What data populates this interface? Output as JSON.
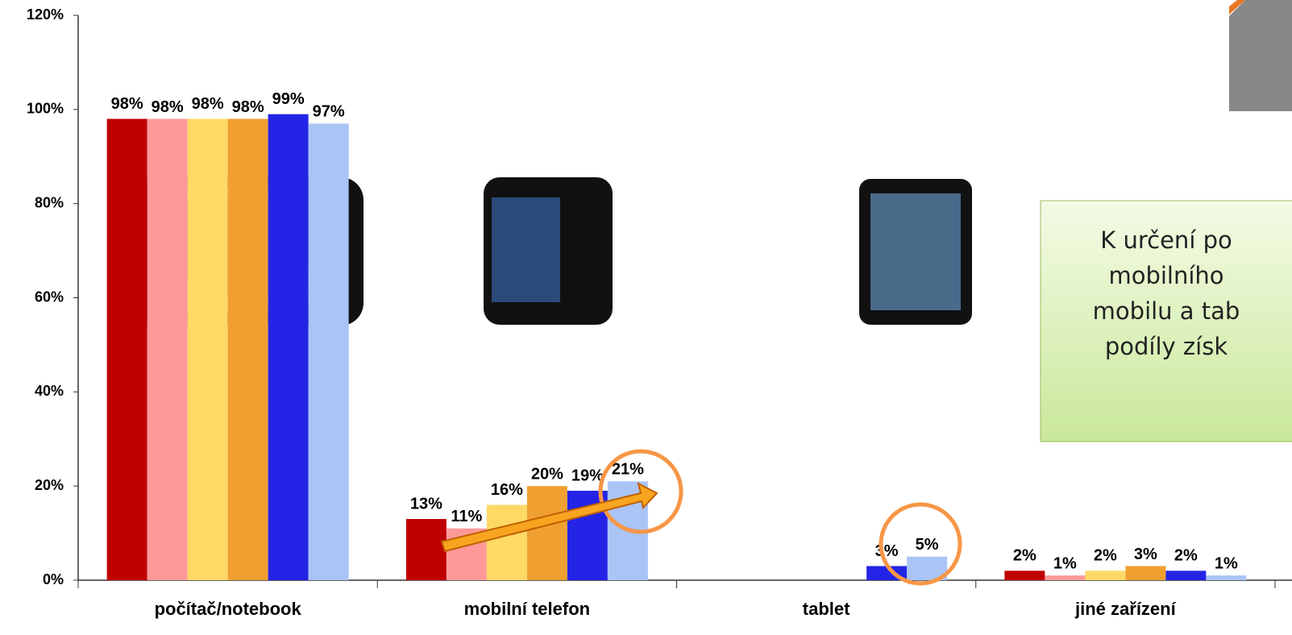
{
  "chart_data": {
    "type": "bar",
    "categories": [
      "počítač/notebook",
      "mobilní telefon",
      "tablet",
      "jiné zařízení"
    ],
    "series": [
      {
        "color": "#c00000",
        "values": [
          98,
          13,
          null,
          2
        ],
        "value_labels": [
          "98%",
          "13%",
          null,
          "2%"
        ]
      },
      {
        "color": "#ff9999",
        "values": [
          98,
          11,
          null,
          1
        ],
        "value_labels": [
          "98%",
          "11%",
          null,
          "1%"
        ]
      },
      {
        "color": "#ffd966",
        "values": [
          98,
          16,
          null,
          2
        ],
        "value_labels": [
          "98%",
          "16%",
          null,
          "2%"
        ]
      },
      {
        "color": "#f0a030",
        "values": [
          98,
          20,
          null,
          3
        ],
        "value_labels": [
          "98%",
          "20%",
          null,
          "3%"
        ]
      },
      {
        "color": "#2424e6",
        "values": [
          99,
          19,
          3,
          2
        ],
        "value_labels": [
          "99%",
          "19%",
          "3%",
          "2%"
        ]
      },
      {
        "color": "#a9c4f5",
        "values": [
          97,
          21,
          5,
          1
        ],
        "value_labels": [
          "97%",
          "21%",
          "5%",
          "1%"
        ]
      }
    ],
    "ylim": [
      0,
      120
    ],
    "yticks": [
      {
        "value": 0,
        "label": "0%"
      },
      {
        "value": 20,
        "label": "20%"
      },
      {
        "value": 40,
        "label": "40%"
      },
      {
        "value": 60,
        "label": "60%"
      },
      {
        "value": 80,
        "label": "80%"
      },
      {
        "value": 100,
        "label": "100%"
      },
      {
        "value": 120,
        "label": "120%"
      }
    ],
    "annotation": [
      "K určení po",
      "mobilního",
      "mobilu a tab",
      "podíly získ"
    ]
  }
}
